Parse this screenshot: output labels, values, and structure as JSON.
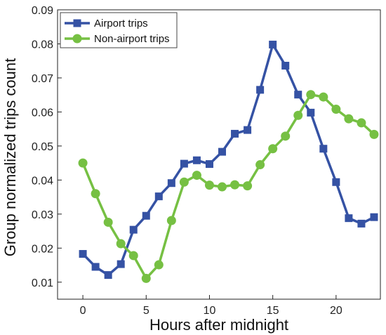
{
  "chart_data": {
    "type": "line",
    "xlabel": "Hours after midnight",
    "ylabel": "Group normalized trips count",
    "xlim": [
      -2,
      23.5
    ],
    "ylim": [
      0.005,
      0.09
    ],
    "xticks": [
      0,
      5,
      10,
      15,
      20
    ],
    "yticks": [
      0.01,
      0.02,
      0.03,
      0.04,
      0.05,
      0.06,
      0.07,
      0.08,
      0.09
    ],
    "ytick_labels": [
      "0.01",
      "0.02",
      "0.03",
      "0.04",
      "0.05",
      "0.06",
      "0.07",
      "0.08",
      "0.09"
    ],
    "legend_position": "top-left",
    "grid": false,
    "x": [
      0,
      1,
      2,
      3,
      4,
      5,
      6,
      7,
      8,
      9,
      10,
      11,
      12,
      13,
      14,
      15,
      16,
      17,
      18,
      19,
      20,
      21,
      22,
      23
    ],
    "series": [
      {
        "name": "Airport trips",
        "marker": "square",
        "color": "#3552a4",
        "values": [
          0.0183,
          0.0145,
          0.0121,
          0.0153,
          0.0254,
          0.0295,
          0.0352,
          0.0391,
          0.0448,
          0.0458,
          0.0447,
          0.0483,
          0.0536,
          0.0547,
          0.0665,
          0.0798,
          0.0736,
          0.0651,
          0.0598,
          0.0492,
          0.0394,
          0.0288,
          0.0272,
          0.0291
        ]
      },
      {
        "name": "Non-airport trips",
        "marker": "circle",
        "color": "#76c043",
        "values": [
          0.045,
          0.036,
          0.0276,
          0.0213,
          0.0178,
          0.0111,
          0.0151,
          0.0281,
          0.0394,
          0.0414,
          0.0385,
          0.038,
          0.0386,
          0.0383,
          0.0445,
          0.0492,
          0.0529,
          0.059,
          0.0651,
          0.0644,
          0.0608,
          0.058,
          0.0568,
          0.0534
        ]
      }
    ]
  }
}
